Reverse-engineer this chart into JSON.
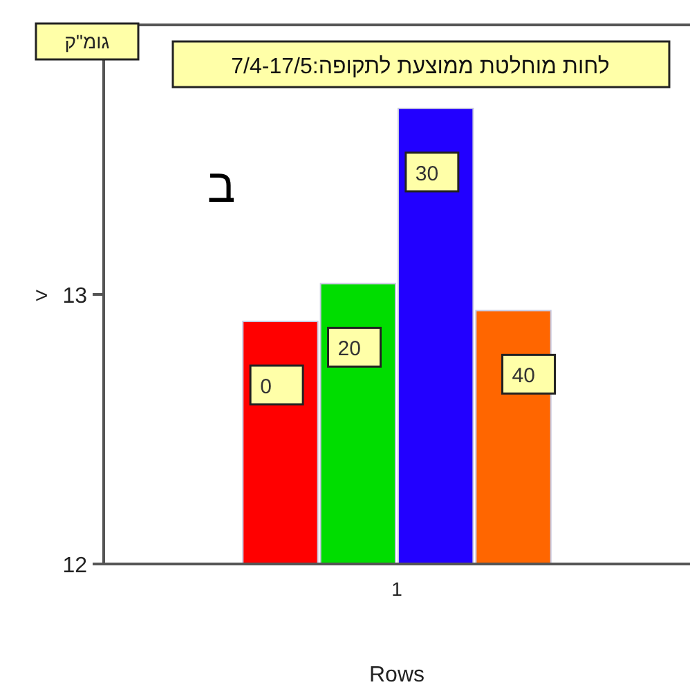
{
  "chart_data": {
    "type": "bar",
    "title": "לחות מוחלטת ממוצעת לתקופה:7/4-17/5",
    "ylabel": "גומ\"ק",
    "xlabel": "Rows",
    "annotations": [
      "ב",
      ">"
    ],
    "categories": [
      "1"
    ],
    "series": [
      {
        "name": "0",
        "color": "#ff0000",
        "values": [
          12.9
        ]
      },
      {
        "name": "20",
        "color": "#00dd00",
        "values": [
          13.04
        ]
      },
      {
        "name": "30",
        "color": "#2200ff",
        "values": [
          13.69
        ]
      },
      {
        "name": "40",
        "color": "#ff6600",
        "values": [
          12.94
        ]
      }
    ],
    "ylim": [
      12,
      14
    ],
    "yticks": [
      12,
      13
    ],
    "legend": false
  }
}
